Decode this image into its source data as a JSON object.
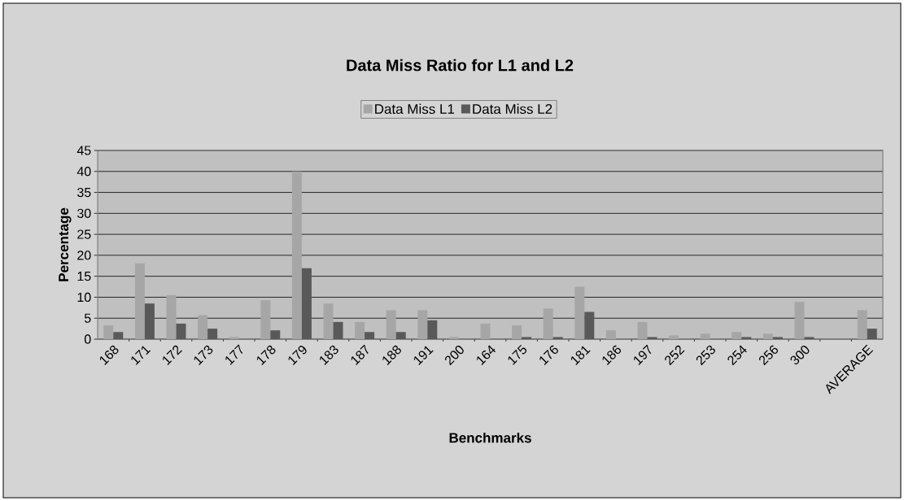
{
  "chart_data": {
    "type": "bar",
    "title": "Data Miss Ratio for L1 and L2",
    "xlabel": "Benchmarks",
    "ylabel": "Percentage",
    "categories": [
      "168",
      "171",
      "172",
      "173",
      "177",
      "178",
      "179",
      "183",
      "187",
      "188",
      "191",
      "200",
      "164",
      "175",
      "176",
      "181",
      "186",
      "197",
      "252",
      "253",
      "254",
      "256",
      "300",
      null,
      "AVERAGE"
    ],
    "series": [
      {
        "name": "Data Miss L1",
        "color": "#a6a6a6",
        "values": [
          3.3,
          18.1,
          10.5,
          5.7,
          0.5,
          9.3,
          40,
          8.5,
          4.1,
          6.9,
          6.9,
          0.5,
          3.7,
          3.3,
          7.3,
          12.5,
          2.1,
          4.1,
          0.9,
          1.3,
          1.7,
          1.3,
          8.9,
          null,
          6.9
        ]
      },
      {
        "name": "Data Miss L2",
        "color": "#595959",
        "values": [
          1.7,
          8.5,
          3.7,
          2.5,
          0,
          2.1,
          16.9,
          4.1,
          1.7,
          1.7,
          4.5,
          0,
          0,
          0.5,
          0.5,
          6.5,
          0,
          0.5,
          0,
          0,
          0.5,
          0.5,
          0.5,
          null,
          2.5
        ]
      }
    ],
    "ylim": [
      0,
      45
    ],
    "yticks": [
      0,
      5,
      10,
      15,
      20,
      25,
      30,
      35,
      40,
      45
    ],
    "grid": "y",
    "legend": "top"
  }
}
